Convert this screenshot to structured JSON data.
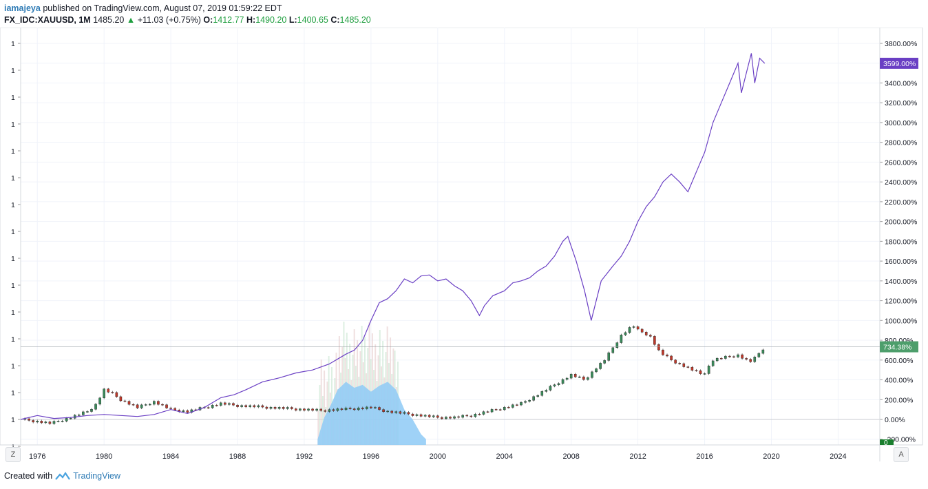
{
  "header": {
    "author": "iamajeya",
    "published_text": "published on TradingView.com, August 07, 2019 01:59:22 EDT",
    "symbol": "FX_IDC:XAUUSD, 1M",
    "last_price": "1485.20",
    "change": "+11.03 (+0.75%)",
    "open_label": "O:",
    "open": "1412.77",
    "high_label": "H:",
    "high": "1490.20",
    "low_label": "L:",
    "low": "1400.65",
    "close_label": "C:",
    "close": "1485.20"
  },
  "footer": {
    "created_with": "Created with",
    "brand": "TradingView"
  },
  "buttons": {
    "zoom": "Z",
    "auto": "A"
  },
  "colors": {
    "compare_line": "#6a3fc4",
    "candle_up": "#3a8a5a",
    "candle_down": "#c0392b",
    "volume_area": "#8ecaf6",
    "last_badge_purple": "#6a3fc4",
    "last_badge_green": "#4d9e6b",
    "up_text": "#1e9e3e"
  },
  "chart_data": {
    "type": "line",
    "x_ticks": [
      "1976",
      "1980",
      "1984",
      "1988",
      "1992",
      "1996",
      "2000",
      "2004",
      "2008",
      "2012",
      "2016",
      "2020",
      "2024"
    ],
    "left_axis_ticks": [
      "1",
      "1",
      "1",
      "1",
      "1",
      "1",
      "1",
      "1",
      "1",
      "1",
      "1",
      "1",
      "1",
      "1",
      "1",
      "1"
    ],
    "right_axis_ticks": [
      "3800.00%",
      "3600.00%",
      "3400.00%",
      "3200.00%",
      "3000.00%",
      "2800.00%",
      "2600.00%",
      "2400.00%",
      "2200.00%",
      "2000.00%",
      "1800.00%",
      "1600.00%",
      "1400.00%",
      "1200.00%",
      "1000.00%",
      "800.00%",
      "600.00%",
      "400.00%",
      "200.00%",
      "0.00%",
      "-200.00%"
    ],
    "ylim": [
      -200,
      3800
    ],
    "xlim": [
      1975.0,
      2026.5
    ],
    "last_value_labels": {
      "compare": "3599.00%",
      "main": "734.38%",
      "volume": "0"
    },
    "series": [
      {
        "key": "compare",
        "x": [
          1975.0,
          1976.0,
          1977.0,
          1978.0,
          1979.0,
          1980.0,
          1981.0,
          1982.0,
          1983.0,
          1984.0,
          1985.0,
          1986.0,
          1987.0,
          1987.8,
          1988.5,
          1989.5,
          1990.5,
          1991.5,
          1992.5,
          1993.5,
          1994.5,
          1995.0,
          1995.5,
          1996.0,
          1996.5,
          1997.0,
          1997.5,
          1998.0,
          1998.5,
          1999.0,
          1999.5,
          2000.0,
          2000.5,
          2001.0,
          2001.5,
          2002.0,
          2002.5,
          2002.8,
          2003.3,
          2004.0,
          2004.5,
          2005.0,
          2005.5,
          2006.0,
          2006.5,
          2007.0,
          2007.5,
          2007.8,
          2008.3,
          2008.8,
          2009.2,
          2009.8,
          2010.5,
          2011.0,
          2011.5,
          2012.0,
          2012.5,
          2013.0,
          2013.5,
          2014.0,
          2014.5,
          2015.0,
          2015.5,
          2016.0,
          2016.5,
          2017.0,
          2017.5,
          2018.0,
          2018.2,
          2018.5,
          2018.8,
          2019.0,
          2019.3,
          2019.6
        ],
        "values": [
          0,
          40,
          10,
          20,
          40,
          50,
          40,
          30,
          50,
          100,
          60,
          120,
          220,
          250,
          300,
          380,
          420,
          470,
          500,
          560,
          660,
          700,
          800,
          1000,
          1180,
          1220,
          1300,
          1420,
          1380,
          1450,
          1460,
          1400,
          1420,
          1350,
          1300,
          1200,
          1050,
          1150,
          1250,
          1300,
          1380,
          1400,
          1430,
          1500,
          1550,
          1650,
          1800,
          1850,
          1600,
          1300,
          1000,
          1400,
          1550,
          1650,
          1800,
          2000,
          2150,
          2250,
          2400,
          2480,
          2400,
          2300,
          2500,
          2700,
          3000,
          3200,
          3400,
          3600,
          3300,
          3500,
          3700,
          3400,
          3650,
          3599
        ]
      },
      {
        "key": "main",
        "x": [
          1975.0,
          1976.0,
          1976.8,
          1978.0,
          1979.0,
          1979.5,
          1980.0,
          1980.5,
          1981.0,
          1982.0,
          1982.5,
          1983.0,
          1984.0,
          1985.0,
          1986.0,
          1987.0,
          1988.0,
          1989.0,
          1990.0,
          1991.0,
          1992.0,
          1993.0,
          1994.0,
          1995.0,
          1996.0,
          1997.0,
          1998.0,
          1999.0,
          2000.0,
          2001.0,
          2002.0,
          2003.0,
          2004.0,
          2005.0,
          2006.0,
          2007.0,
          2008.0,
          2008.8,
          2009.5,
          2010.0,
          2011.0,
          2011.7,
          2012.0,
          2012.7,
          2013.3,
          2014.0,
          2015.0,
          2015.9,
          2016.5,
          2017.0,
          2018.0,
          2018.7,
          2019.0,
          2019.6
        ],
        "values": [
          0,
          -20,
          -40,
          20,
          80,
          150,
          300,
          260,
          200,
          120,
          150,
          180,
          100,
          80,
          120,
          160,
          140,
          130,
          120,
          110,
          100,
          90,
          100,
          110,
          120,
          80,
          60,
          40,
          20,
          20,
          40,
          80,
          120,
          160,
          250,
          350,
          450,
          400,
          520,
          600,
          850,
          950,
          900,
          850,
          680,
          600,
          520,
          450,
          600,
          620,
          650,
          580,
          620,
          734
        ]
      }
    ],
    "volume_area": {
      "x": [
        1992.8,
        1993.2,
        1993.6,
        1994.0,
        1994.5,
        1995.0,
        1995.5,
        1996.0,
        1996.5,
        1997.0,
        1997.5,
        1998.0,
        1998.5,
        1999.0,
        1999.3
      ],
      "values": [
        -200,
        20,
        150,
        300,
        380,
        320,
        350,
        280,
        340,
        380,
        300,
        100,
        0,
        -150,
        -200
      ]
    },
    "volume_bars_range": {
      "from": 1992.8,
      "to": 1997.6
    }
  }
}
